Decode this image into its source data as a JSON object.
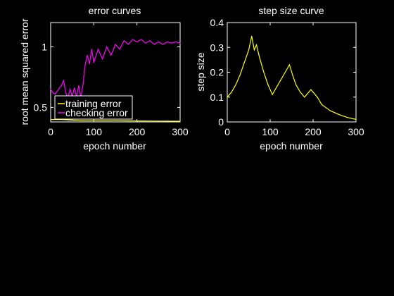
{
  "chart_data": [
    {
      "type": "line",
      "title": "error curves",
      "xlabel": "epoch number",
      "ylabel": "root mean squared error",
      "xlim": [
        0,
        300
      ],
      "ylim": [
        0.38,
        1.2
      ],
      "xticks": [
        0,
        100,
        200,
        300
      ],
      "yticks": [
        0.5,
        1
      ],
      "ytick_labels": [
        "0.5",
        "1"
      ],
      "grid": false,
      "legend_position": "lower-left",
      "series": [
        {
          "name": "training error",
          "color": "#ffff00",
          "x": [
            0,
            25,
            50,
            75,
            100,
            150,
            200,
            250,
            300
          ],
          "y": [
            0.4,
            0.4,
            0.395,
            0.39,
            0.39,
            0.39,
            0.388,
            0.387,
            0.386
          ]
        },
        {
          "name": "checking error",
          "color": "#ff00ff",
          "x": [
            0,
            5,
            10,
            15,
            20,
            25,
            30,
            35,
            40,
            45,
            50,
            55,
            60,
            65,
            70,
            75,
            80,
            85,
            90,
            95,
            100,
            110,
            120,
            130,
            140,
            150,
            160,
            170,
            180,
            190,
            200,
            210,
            220,
            230,
            240,
            250,
            260,
            270,
            280,
            290,
            300
          ],
          "y": [
            0.65,
            0.62,
            0.61,
            0.63,
            0.66,
            0.68,
            0.72,
            0.62,
            0.58,
            0.65,
            0.59,
            0.66,
            0.59,
            0.68,
            0.58,
            0.69,
            0.85,
            0.93,
            0.86,
            0.98,
            0.87,
            0.98,
            0.9,
            1.0,
            0.93,
            1.02,
            0.98,
            1.05,
            1.02,
            1.06,
            1.04,
            1.06,
            1.03,
            1.05,
            1.02,
            1.04,
            1.02,
            1.04,
            1.03,
            1.04,
            1.03
          ]
        }
      ]
    },
    {
      "type": "line",
      "title": "step size curve",
      "xlabel": "epoch number",
      "ylabel": "step size",
      "xlim": [
        0,
        300
      ],
      "ylim": [
        0,
        0.4
      ],
      "xticks": [
        0,
        100,
        200,
        300
      ],
      "yticks": [
        0,
        0.1,
        0.2,
        0.3,
        0.4
      ],
      "ytick_labels": [
        "0",
        "0.1",
        "0.2",
        "0.3",
        "0.4"
      ],
      "grid": false,
      "series": [
        {
          "color": "#ffff00",
          "x": [
            0,
            10,
            20,
            30,
            40,
            50,
            57,
            63,
            68,
            75,
            85,
            95,
            105,
            115,
            125,
            135,
            145,
            152,
            160,
            170,
            180,
            190,
            195,
            200,
            210,
            220,
            240,
            260,
            280,
            300
          ],
          "y": [
            0.1,
            0.12,
            0.15,
            0.19,
            0.24,
            0.29,
            0.345,
            0.29,
            0.31,
            0.26,
            0.2,
            0.15,
            0.11,
            0.14,
            0.17,
            0.2,
            0.23,
            0.19,
            0.15,
            0.12,
            0.1,
            0.12,
            0.13,
            0.12,
            0.1,
            0.07,
            0.045,
            0.03,
            0.018,
            0.01
          ]
        }
      ]
    }
  ]
}
